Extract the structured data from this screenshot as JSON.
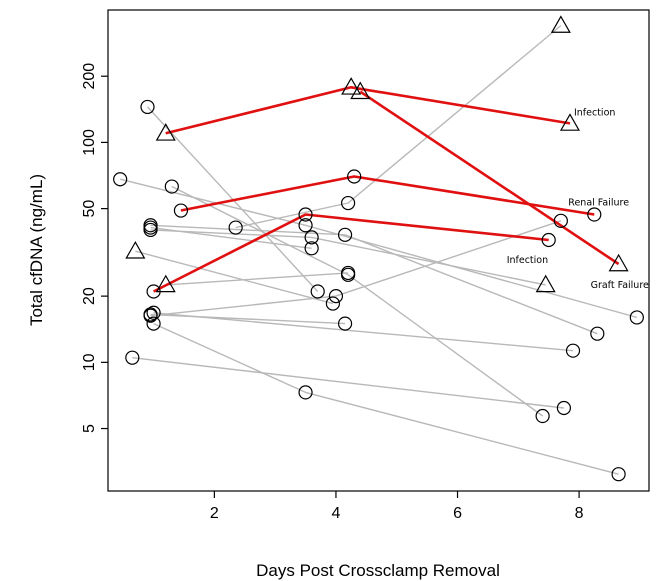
{
  "chart_data": {
    "type": "scatter",
    "title": "",
    "xlabel": "Days Post Crossclamp Removal",
    "ylabel": "Total cfDNA (ng/mL)",
    "xlim": [
      0.25,
      9.15
    ],
    "ylim": [
      2.6,
      400
    ],
    "y_scale": "log",
    "x_ticks": [
      2,
      4,
      6,
      8
    ],
    "y_ticks": [
      5,
      10,
      20,
      50,
      100,
      200
    ],
    "grid": false,
    "legend": "none",
    "colors": {
      "gray_line": "#b8b8b8",
      "red_line": "#e01010",
      "marker": "#000000"
    },
    "gray_patients": [
      {
        "points": [
          {
            "x": 0.9,
            "y": 145,
            "m": "circle"
          },
          {
            "x": 3.7,
            "y": 21,
            "m": "circle"
          }
        ]
      },
      {
        "points": [
          {
            "x": 0.45,
            "y": 68,
            "m": "circle"
          },
          {
            "x": 3.5,
            "y": 42,
            "m": "circle"
          },
          {
            "x": 8.95,
            "y": 16,
            "m": "circle"
          }
        ]
      },
      {
        "points": [
          {
            "x": 1.3,
            "y": 63,
            "m": "circle"
          },
          {
            "x": 4.2,
            "y": 25,
            "m": "circle"
          },
          {
            "x": 7.4,
            "y": 5.7,
            "m": "circle"
          }
        ]
      },
      {
        "points": [
          {
            "x": 2.35,
            "y": 41,
            "m": "circle"
          },
          {
            "x": 4.2,
            "y": 53,
            "m": "circle"
          },
          {
            "x": 7.7,
            "y": 340,
            "m": "triangle"
          }
        ]
      },
      {
        "points": [
          {
            "x": 0.95,
            "y": 42,
            "m": "circle"
          },
          {
            "x": 4.15,
            "y": 38,
            "m": "circle"
          },
          {
            "x": 8.3,
            "y": 13.5,
            "m": "circle"
          }
        ]
      },
      {
        "points": [
          {
            "x": 0.95,
            "y": 40,
            "m": "circle"
          },
          {
            "x": 3.6,
            "y": 37,
            "m": "circle"
          },
          {
            "x": 7.45,
            "y": 22.5,
            "m": "triangle"
          }
        ]
      },
      {
        "points": [
          {
            "x": 0.95,
            "y": 41,
            "m": "circle"
          },
          {
            "x": 3.6,
            "y": 33,
            "m": "circle"
          }
        ]
      },
      {
        "points": [
          {
            "x": 0.7,
            "y": 32,
            "m": "triangle"
          },
          {
            "x": 3.95,
            "y": 18.5,
            "m": "circle"
          }
        ]
      },
      {
        "points": [
          {
            "x": 0.95,
            "y": 16.3,
            "m": "circle"
          },
          {
            "x": 4.0,
            "y": 20,
            "m": "circle"
          },
          {
            "x": 7.7,
            "y": 44,
            "m": "circle"
          }
        ]
      },
      {
        "points": [
          {
            "x": 0.95,
            "y": 16.5,
            "m": "circle"
          },
          {
            "x": 4.15,
            "y": 15,
            "m": "circle"
          }
        ]
      },
      {
        "points": [
          {
            "x": 1.0,
            "y": 16.8,
            "m": "circle"
          },
          {
            "x": 7.9,
            "y": 11.3,
            "m": "circle"
          }
        ]
      },
      {
        "points": [
          {
            "x": 1.0,
            "y": 15,
            "m": "circle"
          },
          {
            "x": 3.5,
            "y": 7.3,
            "m": "circle"
          },
          {
            "x": 8.65,
            "y": 3.1,
            "m": "circle"
          }
        ]
      },
      {
        "points": [
          {
            "x": 0.65,
            "y": 10.5,
            "m": "circle"
          },
          {
            "x": 7.75,
            "y": 6.2,
            "m": "circle"
          }
        ]
      },
      {
        "points": [
          {
            "x": 1.2,
            "y": 22.5,
            "m": "triangle"
          },
          {
            "x": 4.2,
            "y": 25.5,
            "m": "circle"
          }
        ]
      }
    ],
    "red_patients": [
      {
        "label": "Infection",
        "label_dx": 4,
        "label_dy": -8,
        "points": [
          {
            "x": 1.2,
            "y": 110,
            "m": "triangle"
          },
          {
            "x": 4.25,
            "y": 178,
            "m": "triangle"
          },
          {
            "x": 7.85,
            "y": 122,
            "m": "triangle"
          }
        ]
      },
      {
        "label": "Graft Failure",
        "label_dx": -28,
        "label_dy": 24,
        "points": [
          {
            "x": 4.4,
            "y": 170,
            "m": "triangle"
          },
          {
            "x": 8.65,
            "y": 28,
            "m": "triangle"
          }
        ]
      },
      {
        "label": "Renal Failure",
        "label_dx": -26,
        "label_dy": -9,
        "points": [
          {
            "x": 1.45,
            "y": 49,
            "m": "circle"
          },
          {
            "x": 4.3,
            "y": 70,
            "m": "circle"
          },
          {
            "x": 8.25,
            "y": 47,
            "m": "circle"
          }
        ]
      },
      {
        "label": "Infection",
        "label_dx": -42,
        "label_dy": 23,
        "points": [
          {
            "x": 1.0,
            "y": 21,
            "m": "circle"
          },
          {
            "x": 3.5,
            "y": 47,
            "m": "circle"
          },
          {
            "x": 7.5,
            "y": 36,
            "m": "circle"
          }
        ]
      }
    ]
  }
}
